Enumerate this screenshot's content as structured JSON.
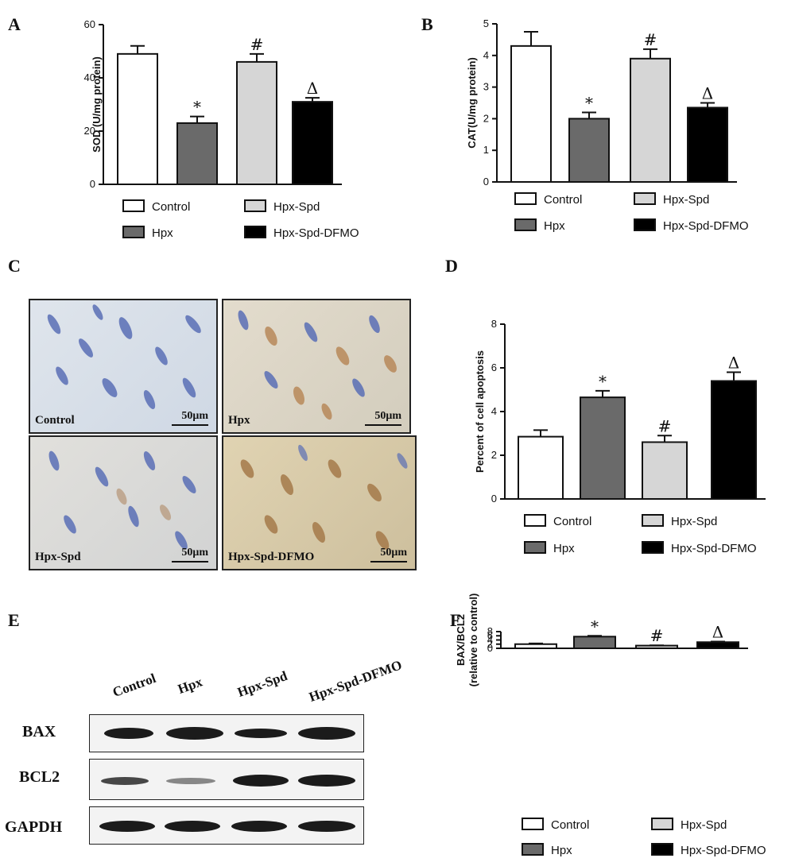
{
  "panels": {
    "a": "A",
    "b": "B",
    "c": "C",
    "d": "D",
    "e": "E",
    "f": "F"
  },
  "chart_data": [
    {
      "id": "A",
      "type": "bar",
      "ylabel": "SOD (U/mg protein)",
      "ylim": [
        0,
        60
      ],
      "yticks": [
        "0",
        "20",
        "40",
        "60"
      ],
      "categories": [
        "Control",
        "Hpx",
        "Hpx-Spd",
        "Hpx-Spd-DFMO"
      ],
      "values": [
        49,
        23,
        46,
        31
      ],
      "errors": [
        3,
        2.5,
        3,
        1.5
      ],
      "annotations": [
        "",
        "*",
        "#",
        "Δ"
      ]
    },
    {
      "id": "B",
      "type": "bar",
      "ylabel": "CAT(U/mg protein)",
      "ylim": [
        0,
        5
      ],
      "yticks": [
        "0",
        "1",
        "2",
        "3",
        "4",
        "5"
      ],
      "categories": [
        "Control",
        "Hpx",
        "Hpx-Spd",
        "Hpx-Spd-DFMO"
      ],
      "values": [
        4.3,
        2.0,
        3.9,
        2.35
      ],
      "errors": [
        0.45,
        0.2,
        0.3,
        0.15
      ],
      "annotations": [
        "",
        "*",
        "#",
        "Δ"
      ]
    },
    {
      "id": "D",
      "type": "bar",
      "ylabel": "Percent of cell apoptosis",
      "ylim": [
        0,
        8
      ],
      "yticks": [
        "0",
        "2",
        "4",
        "6",
        "8"
      ],
      "categories": [
        "Control",
        "Hpx",
        "Hpx-Spd",
        "Hpx-Spd-DFMO"
      ],
      "values": [
        2.85,
        4.65,
        2.6,
        5.4
      ],
      "errors": [
        0.3,
        0.3,
        0.3,
        0.4
      ],
      "annotations": [
        "",
        "*",
        "#",
        "Δ"
      ]
    },
    {
      "id": "F",
      "type": "bar",
      "ylabel": "BAX/BCL2",
      "ylabel2": "(relative to control)",
      "ylim": [
        0,
        8
      ],
      "yticks": [
        "0",
        "2",
        "4",
        "6",
        "8"
      ],
      "categories": [
        "Control",
        "Hpx",
        "Hpx-Spd",
        "Hpx-Spd-DFMO"
      ],
      "values": [
        2.0,
        5.6,
        1.3,
        2.95
      ],
      "errors": [
        0.35,
        0.4,
        0.15,
        0.3
      ],
      "annotations": [
        "",
        "*",
        "#",
        "Δ"
      ]
    }
  ],
  "legend": {
    "items": [
      "Control",
      "Hpx",
      "Hpx-Spd",
      "Hpx-Spd-DFMO"
    ]
  },
  "colors": {
    "Control": "#ffffff",
    "Hpx": "#6a6a6a",
    "Hpx-Spd": "#d6d6d6",
    "Hpx-Spd-DFMO": "#000000"
  },
  "micrographs": {
    "labels": [
      "Control",
      "Hpx",
      "Hpx-Spd",
      "Hpx-Spd-DFMO"
    ],
    "scale": "50μm"
  },
  "blot": {
    "lanes": [
      "Control",
      "Hpx",
      "Hpx-Spd",
      "Hpx-Spd-DFMO"
    ],
    "rows": [
      "BAX",
      "BCL2",
      "GAPDH"
    ]
  }
}
